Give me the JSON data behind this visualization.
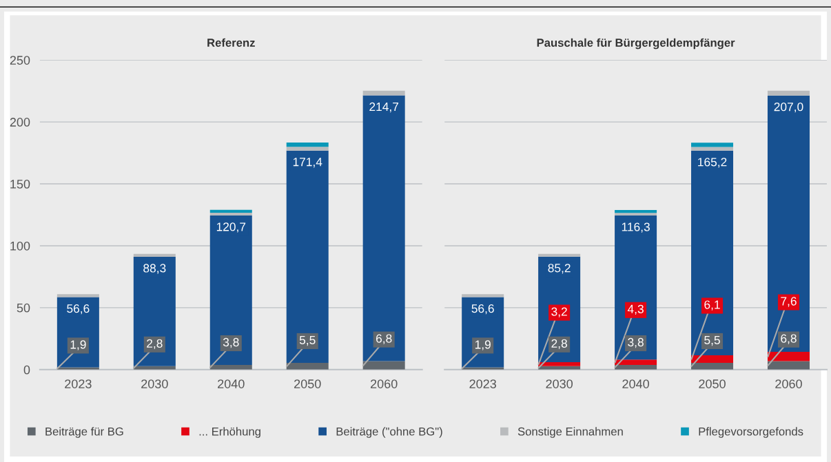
{
  "chart_data": [
    {
      "type": "bar",
      "title": "Referenz",
      "stacked": true,
      "categories": [
        "2023",
        "2030",
        "2040",
        "2050",
        "2060"
      ],
      "ylim": [
        0,
        250
      ],
      "yticks": [
        0,
        50,
        100,
        150,
        200,
        250
      ],
      "grid": "y",
      "legend": "bottom",
      "series": [
        {
          "color": "#60676d",
          "values": [
            1.9,
            2.8,
            3.8,
            5.5,
            6.8
          ],
          "value_labels": [
            "1,9",
            "2,8",
            "3,8",
            "5,5",
            "6,8"
          ]
        },
        {
          "color": "#175191",
          "values": [
            56.6,
            88.3,
            120.7,
            171.4,
            214.7
          ],
          "value_labels": [
            "56,6",
            "88,3",
            "120,7",
            "171,4",
            "214,7"
          ]
        },
        {
          "color": "#b9bbbd",
          "values": [
            2.4,
            2.3,
            2.2,
            3.0,
            3.8
          ]
        },
        {
          "color": "#0a98b8",
          "values": [
            null,
            null,
            2.3,
            3.5,
            null
          ]
        }
      ]
    },
    {
      "type": "bar",
      "title": "Pauschale für Bürgergeldempfänger",
      "stacked": true,
      "categories": [
        "2023",
        "2030",
        "2040",
        "2050",
        "2060"
      ],
      "ylim": [
        0,
        250
      ],
      "yticks": [
        0,
        50,
        100,
        150,
        200,
        250
      ],
      "grid": "y",
      "tick_labels": "x",
      "legend": "bottom",
      "series": [
        {
          "name": "Beiträge für BG",
          "color": "#60676d",
          "values": [
            1.9,
            2.8,
            3.8,
            5.5,
            6.8
          ],
          "value_labels": [
            "1,9",
            "2,8",
            "3,8",
            "5,5",
            "6,8"
          ]
        },
        {
          "name": "... Erhöhung",
          "color": "#e30613",
          "values": [
            null,
            3.2,
            4.3,
            6.1,
            7.6
          ],
          "value_labels": [
            null,
            "3,2",
            "4,3",
            "6,1",
            "7,6"
          ]
        },
        {
          "name": "Beiträge (\"ohne BG\")",
          "color": "#175191",
          "values": [
            56.6,
            85.2,
            116.3,
            165.2,
            207.0
          ],
          "value_labels": [
            "56,6",
            "85,2",
            "116,3",
            "165,2",
            "207,0"
          ]
        },
        {
          "name": "Sonstige Einnahmen",
          "color": "#b9bbbd",
          "values": [
            2.4,
            2.3,
            2.2,
            3.0,
            3.8
          ]
        },
        {
          "name": "Pflegevorsorgefonds",
          "color": "#0a98b8",
          "values": [
            null,
            null,
            2.3,
            3.5,
            null
          ]
        }
      ]
    }
  ]
}
